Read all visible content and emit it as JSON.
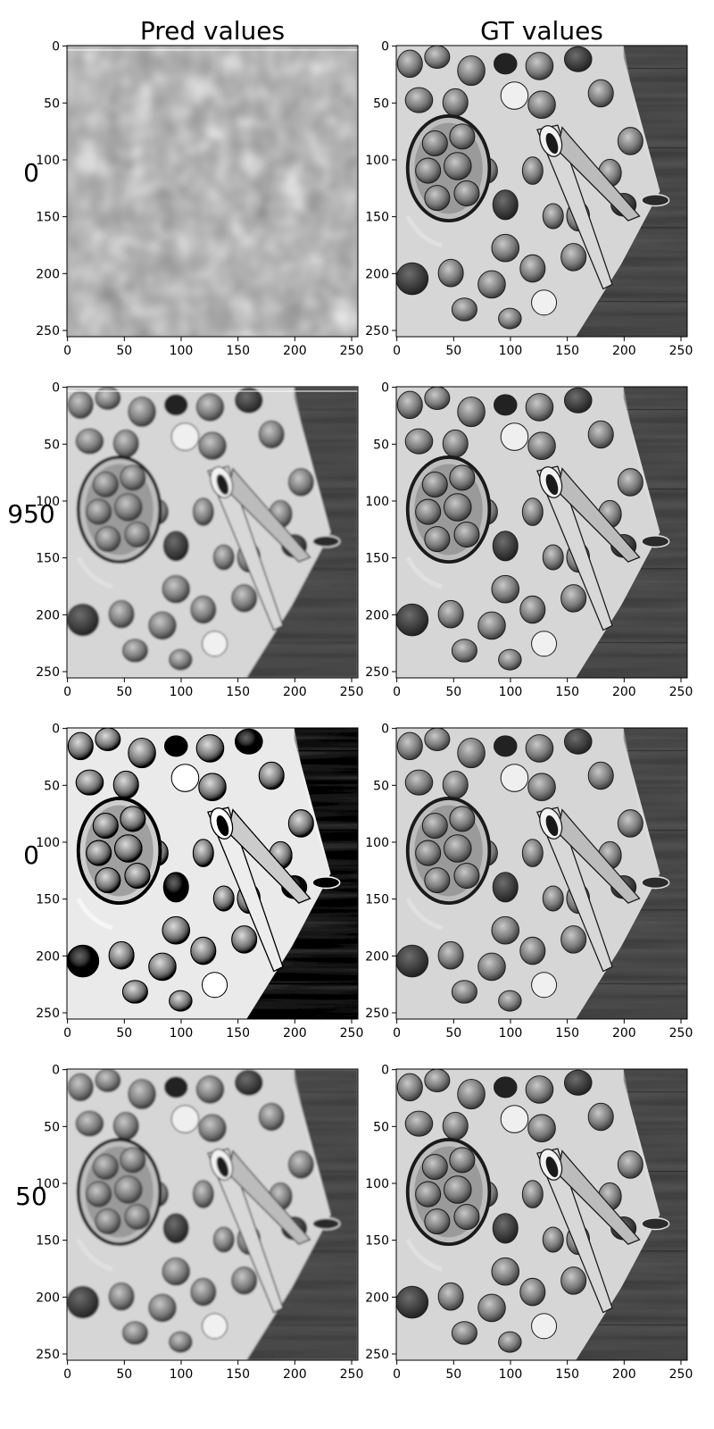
{
  "figure": {
    "column_titles": [
      "Pred values",
      "GT values"
    ],
    "row_labels": [
      "0",
      "950",
      "0",
      "50"
    ]
  },
  "chart_data": {
    "type": "image-grid",
    "rows": 4,
    "cols": 2,
    "xlim": [
      0,
      255
    ],
    "ylim": [
      255,
      0
    ],
    "xticks": [
      0,
      50,
      100,
      150,
      200,
      250
    ],
    "yticks": [
      0,
      50,
      100,
      150,
      200,
      250
    ],
    "panels": [
      {
        "row": 0,
        "col": 0,
        "content": "blurry noise",
        "quality": "noise"
      },
      {
        "row": 0,
        "col": 1,
        "content": "walnuts and nutcracker, grayscale",
        "quality": "gt"
      },
      {
        "row": 1,
        "col": 0,
        "content": "walnuts and nutcracker, grayscale",
        "quality": "slight-blur"
      },
      {
        "row": 1,
        "col": 1,
        "content": "walnuts and nutcracker, grayscale",
        "quality": "gt"
      },
      {
        "row": 2,
        "col": 0,
        "content": "walnuts and nutcracker, grayscale",
        "quality": "high-contrast"
      },
      {
        "row": 2,
        "col": 1,
        "content": "walnuts and nutcracker, grayscale",
        "quality": "gt"
      },
      {
        "row": 3,
        "col": 0,
        "content": "walnuts and nutcracker, grayscale",
        "quality": "slight-blur"
      },
      {
        "row": 3,
        "col": 1,
        "content": "walnuts and nutcracker, grayscale",
        "quality": "gt"
      }
    ]
  }
}
